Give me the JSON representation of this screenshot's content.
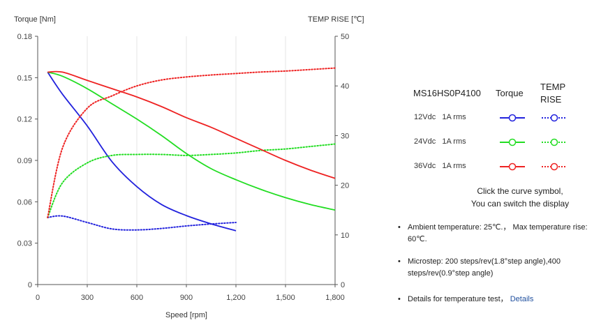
{
  "chart_data": {
    "type": "line",
    "xlabel": "Speed [rpm]",
    "ylabel_left": "Torque  [Nm]",
    "ylabel_right": "TEMP RISE [℃]",
    "xlim": [
      0,
      1800
    ],
    "ylim_left": [
      0,
      0.18
    ],
    "ylim_right": [
      0,
      50
    ],
    "x_ticks": [
      0,
      300,
      600,
      900,
      1200,
      1500,
      1800
    ],
    "x_tick_labels": [
      "0",
      "300",
      "600",
      "900",
      "1,200",
      "1,500",
      "1,800"
    ],
    "y_left_ticks": [
      0,
      0.03,
      0.06,
      0.09,
      0.12,
      0.15,
      0.18
    ],
    "y_left_tick_labels": [
      "0",
      "0.03",
      "0.06",
      "0.09",
      "0.12",
      "0.15",
      "0.18"
    ],
    "y_right_ticks": [
      0,
      10,
      20,
      30,
      40,
      50
    ],
    "y_right_tick_labels": [
      "0",
      "10",
      "20",
      "30",
      "40",
      "50"
    ],
    "grid": "vertical",
    "series": [
      {
        "name": "12Vdc Torque",
        "axis": "left",
        "style": "solid",
        "color": "#2222dd",
        "x": [
          60,
          150,
          300,
          450,
          600,
          750,
          900,
          1050,
          1200
        ],
        "values": [
          0.154,
          0.138,
          0.115,
          0.089,
          0.071,
          0.058,
          0.05,
          0.044,
          0.039
        ]
      },
      {
        "name": "12Vdc Temp rise",
        "axis": "right",
        "style": "dotted",
        "color": "#2222dd",
        "x": [
          60,
          150,
          300,
          450,
          600,
          750,
          900,
          1050,
          1200
        ],
        "values": [
          13.5,
          13.8,
          12.5,
          11.2,
          11.0,
          11.3,
          11.8,
          12.2,
          12.5
        ]
      },
      {
        "name": "24Vdc Torque",
        "axis": "left",
        "style": "solid",
        "color": "#22dd22",
        "x": [
          60,
          150,
          300,
          450,
          600,
          750,
          900,
          1050,
          1200,
          1350,
          1500,
          1650,
          1800
        ],
        "values": [
          0.154,
          0.151,
          0.142,
          0.131,
          0.12,
          0.108,
          0.095,
          0.084,
          0.076,
          0.069,
          0.063,
          0.058,
          0.054
        ]
      },
      {
        "name": "24Vdc Temp rise",
        "axis": "right",
        "style": "dotted",
        "color": "#22dd22",
        "x": [
          60,
          150,
          300,
          450,
          600,
          750,
          900,
          1050,
          1200,
          1350,
          1500,
          1650,
          1800
        ],
        "values": [
          13.5,
          20.5,
          24.5,
          26.0,
          26.2,
          26.2,
          26.0,
          26.2,
          26.5,
          27.0,
          27.3,
          27.8,
          28.3
        ]
      },
      {
        "name": "36Vdc Torque",
        "axis": "left",
        "style": "solid",
        "color": "#ee2222",
        "x": [
          60,
          150,
          300,
          450,
          600,
          750,
          900,
          1050,
          1200,
          1350,
          1500,
          1650,
          1800
        ],
        "values": [
          0.154,
          0.154,
          0.148,
          0.142,
          0.136,
          0.129,
          0.121,
          0.114,
          0.106,
          0.098,
          0.09,
          0.083,
          0.077
        ]
      },
      {
        "name": "36Vdc Temp rise",
        "axis": "right",
        "style": "dotted",
        "color": "#ee2222",
        "x": [
          60,
          150,
          300,
          450,
          600,
          750,
          900,
          1050,
          1200,
          1350,
          1500,
          1650,
          1800
        ],
        "values": [
          13.5,
          27.5,
          35.5,
          38.0,
          40.0,
          41.2,
          41.8,
          42.2,
          42.5,
          42.8,
          43.0,
          43.3,
          43.6
        ]
      }
    ]
  },
  "legend": {
    "model": "MS16HS0P4100",
    "torque_header": "Torque",
    "temp_header": "TEMP RISE",
    "rows": [
      {
        "voltage": "12Vdc",
        "current": "1A rms",
        "color": "#2222dd"
      },
      {
        "voltage": "24Vdc",
        "current": "1A rms",
        "color": "#22dd22"
      },
      {
        "voltage": "36Vdc",
        "current": "1A rms",
        "color": "#ee2222"
      }
    ],
    "hint_line1": "Click the curve symbol,",
    "hint_line2": "You can switch the display"
  },
  "notes": {
    "ambient": "Ambient temperature: 25℃.， Max temperature rise: 60℃.",
    "microstep": "Microstep: 200 steps/rev(1.8°step angle),400 steps/rev(0.9°step angle)",
    "temp_test": "Details for temperature test，",
    "details_link": "Details"
  }
}
